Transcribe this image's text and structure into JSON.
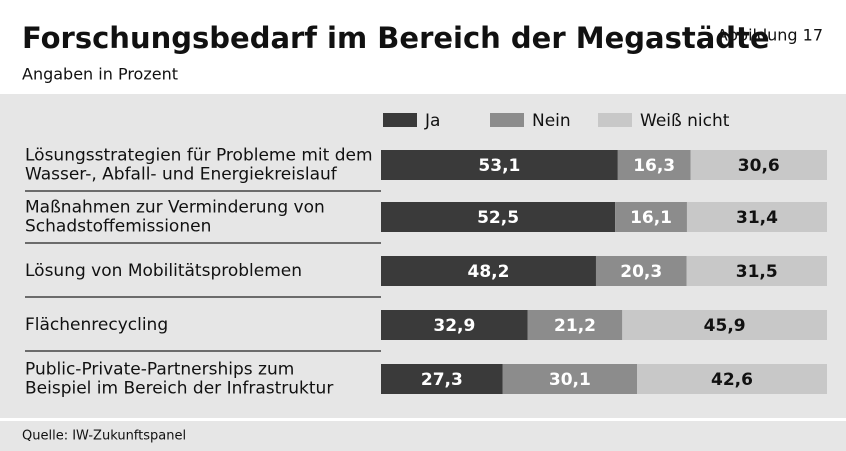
{
  "chart_data": {
    "type": "bar",
    "orientation": "horizontal",
    "stacked": true,
    "title": "Forschungsbedarf im Bereich der Megastädte",
    "figure_label": "Abbildung 17",
    "subtitle": "Angaben in Prozent",
    "source": "Quelle: IW-Zukunftspanel",
    "categories": [
      "Lösungsstrategien für Probleme mit dem\nWasser-, Abfall- und Energiekreislauf",
      "Maßnahmen zur Verminderung von\nSchadstoffemissionen",
      "Lösung von Mobilitätsproblemen",
      "Flächenrecycling",
      "Public-Private-Partnerships zum\nBeispiel im Bereich der Infrastruktur"
    ],
    "xlim": [
      0,
      100
    ],
    "series": [
      {
        "name": "Ja",
        "color": "#3a3a3a",
        "label_color": "#ffffff",
        "values": [
          53.1,
          52.5,
          48.2,
          32.9,
          27.3
        ],
        "value_labels": [
          "53,1",
          "52,5",
          "48,2",
          "32,9",
          "27,3"
        ]
      },
      {
        "name": "Nein",
        "color": "#8c8c8c",
        "label_color": "#ffffff",
        "values": [
          16.3,
          16.1,
          20.3,
          21.2,
          30.1
        ],
        "value_labels": [
          "16,3",
          "16,1",
          "20,3",
          "21,2",
          "30,1"
        ]
      },
      {
        "name": "Weiß nicht",
        "color": "#c8c8c8",
        "label_color": "#111111",
        "values": [
          30.6,
          31.4,
          31.5,
          45.9,
          42.6
        ],
        "value_labels": [
          "30,6",
          "31,4",
          "31,5",
          "45,9",
          "42,6"
        ]
      }
    ]
  }
}
